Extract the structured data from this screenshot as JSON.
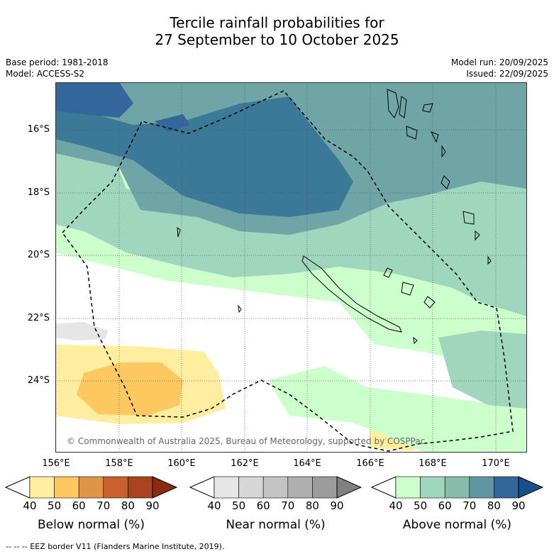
{
  "header": {
    "title_line1": "Tercile rainfall probabilities for",
    "title_line2": "27 September to 10 October 2025",
    "base_period": "Base period: 1981-2018",
    "model": "Model: ACCESS-S2",
    "model_run": "Model run: 20/09/2025",
    "issued": "Issued: 22/09/2025"
  },
  "map": {
    "lat_labels": [
      "16°S",
      "18°S",
      "20°S",
      "22°S",
      "24°S"
    ],
    "lon_labels": [
      "156°E",
      "158°E",
      "160°E",
      "162°E",
      "164°E",
      "166°E",
      "168°E",
      "170°E"
    ],
    "copyright": "© Commonwealth of Australia 2025, Bureau of Meteorology, supported by COSPPac"
  },
  "colorbars": [
    {
      "label": "Below normal (%)",
      "ticks": [
        "40",
        "50",
        "60",
        "70",
        "80",
        "90"
      ],
      "colors": [
        "#ffeea0",
        "#fdc860",
        "#e09448",
        "#c9602f",
        "#a9441f",
        "#8a2b12"
      ]
    },
    {
      "label": "Near normal (%)",
      "ticks": [
        "40",
        "50",
        "60",
        "70",
        "80",
        "90"
      ],
      "colors": [
        "#e6e6e6",
        "#d6d6d6",
        "#c4c4c4",
        "#b0b0b0",
        "#9c9c9c",
        "#808080"
      ]
    },
    {
      "label": "Above normal (%)",
      "ticks": [
        "40",
        "50",
        "60",
        "70",
        "80",
        "90"
      ],
      "colors": [
        "#ccffcc",
        "#a0d6bd",
        "#86bca9",
        "#5e96a3",
        "#336699",
        "#1a4f88"
      ]
    }
  ],
  "footer": {
    "legend": "--  --  -- EEZ border V11 (Flanders Marine Institute, 2019)."
  }
}
